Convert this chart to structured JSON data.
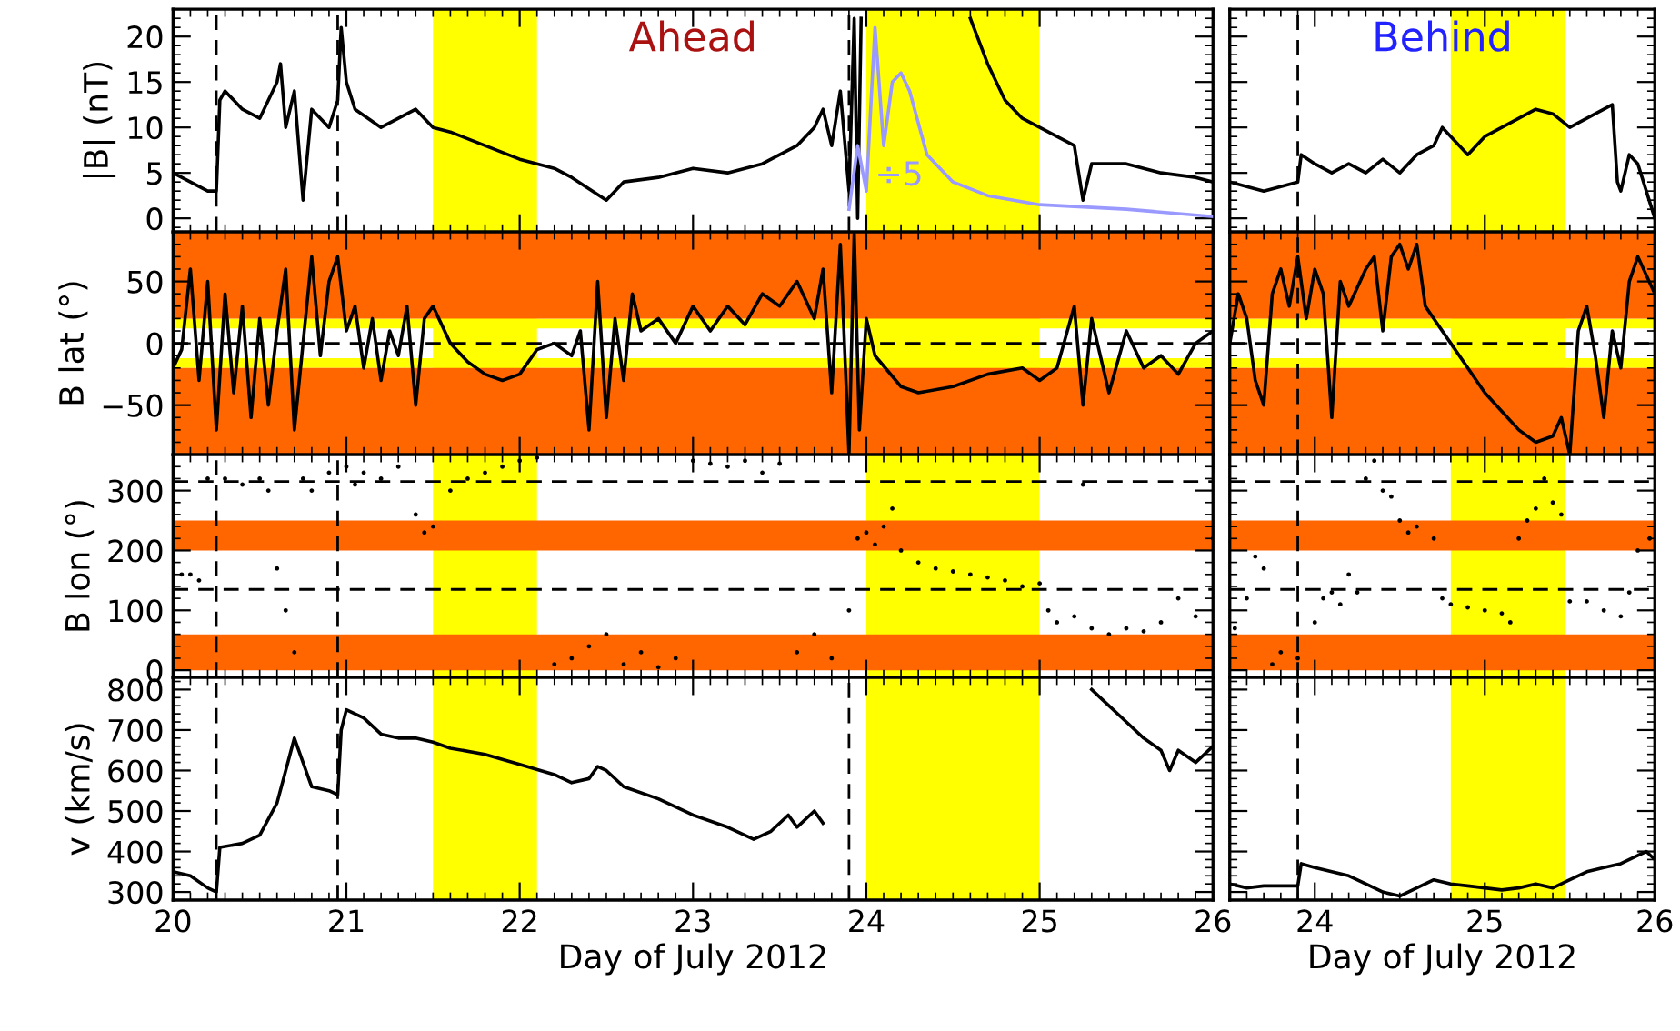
{
  "chart_data": [
    {
      "type": "line",
      "title": "Ahead",
      "ylabel": "|B| (nT)",
      "xlim": [
        20,
        26
      ],
      "xticks": [
        20,
        21,
        22,
        23,
        24,
        25,
        26
      ],
      "ylim": [
        -1.5,
        23
      ],
      "yticks": [
        0,
        5,
        10,
        15,
        20
      ],
      "tick_labels": "y",
      "bands": [
        {
          "axis": "x",
          "from": 21.5,
          "to": 22.1,
          "color": "#ffff00"
        },
        {
          "axis": "x",
          "from": 24.0,
          "to": 25.0,
          "color": "#ffff00"
        }
      ],
      "ref_lines": [
        {
          "axis": "x",
          "value": 20.25,
          "line_style": "dashed"
        },
        {
          "axis": "x",
          "value": 20.95,
          "line_style": "dashed"
        },
        {
          "axis": "x",
          "value": 23.9,
          "line_style": "dashed"
        }
      ],
      "series": [
        {
          "color": "#000000",
          "x": [
            20.0,
            20.1,
            20.2,
            20.25,
            20.27,
            20.3,
            20.4,
            20.5,
            20.6,
            20.62,
            20.65,
            20.7,
            20.75,
            20.8,
            20.85,
            20.9,
            20.95,
            20.97,
            21.0,
            21.05,
            21.2,
            21.3,
            21.4,
            21.5,
            21.6,
            21.8,
            22.0,
            22.2,
            22.3,
            22.5,
            22.6,
            22.8,
            23.0,
            23.2,
            23.4,
            23.6,
            23.7,
            23.75,
            23.8,
            23.85,
            23.9,
            23.93,
            23.95,
            23.97,
            24.0,
            24.6,
            24.7,
            24.8,
            24.9,
            25.0,
            25.1,
            25.2,
            25.25,
            25.3,
            25.5,
            25.7,
            25.9,
            26.0
          ],
          "values": [
            5,
            4,
            3,
            3,
            13,
            14,
            12,
            11,
            15,
            17,
            10,
            14,
            2,
            12,
            11,
            10,
            13,
            21,
            15,
            12,
            10,
            11,
            12,
            10,
            9.5,
            8,
            6.5,
            5.5,
            4.5,
            2,
            4,
            4.5,
            5.5,
            5,
            6,
            8,
            10,
            12,
            8,
            14,
            3,
            22,
            0,
            22,
            null,
            22,
            17,
            13,
            11,
            10,
            9,
            8,
            2,
            6,
            6,
            5,
            4.5,
            4
          ]
        },
        {
          "name": "÷5",
          "color": "#9999ff",
          "x": [
            23.9,
            23.95,
            24.0,
            24.05,
            24.1,
            24.15,
            24.2,
            24.25,
            24.35,
            24.5,
            24.7,
            25.0,
            25.5,
            26.0
          ],
          "values": [
            1,
            8,
            3,
            21,
            8,
            15,
            16,
            14,
            7,
            4,
            2.5,
            1.5,
            1,
            0.2
          ]
        }
      ]
    },
    {
      "type": "line",
      "title": "Behind",
      "xlim": [
        23.5,
        26
      ],
      "xticks": [
        24,
        25,
        26
      ],
      "ylim": [
        -1.5,
        23
      ],
      "yticks": [
        0,
        5,
        10,
        15,
        20
      ],
      "tick_labels": false,
      "bands": [
        {
          "axis": "x",
          "from": 24.8,
          "to": 25.47,
          "color": "#ffff00"
        }
      ],
      "ref_lines": [
        {
          "axis": "x",
          "value": 23.9,
          "line_style": "dashed"
        }
      ],
      "series": [
        {
          "color": "#000000",
          "x": [
            23.5,
            23.6,
            23.7,
            23.8,
            23.9,
            23.92,
            24.0,
            24.1,
            24.2,
            24.3,
            24.4,
            24.5,
            24.6,
            24.7,
            24.75,
            24.85,
            24.9,
            25.0,
            25.1,
            25.2,
            25.3,
            25.4,
            25.5,
            25.6,
            25.7,
            25.75,
            25.78,
            25.8,
            25.85,
            25.9,
            25.95,
            26.0
          ],
          "values": [
            4,
            3.5,
            3,
            3.5,
            4,
            7,
            6,
            5,
            6,
            5,
            6.5,
            5,
            7,
            8,
            10,
            8,
            7,
            9,
            10,
            11,
            12,
            11.5,
            10,
            11,
            12,
            12.5,
            4,
            3,
            7,
            6,
            3,
            0
          ]
        }
      ]
    },
    {
      "type": "line",
      "ylabel": "B lat (°)",
      "xlim": [
        20,
        26
      ],
      "xticks": [
        20,
        21,
        22,
        23,
        24,
        25,
        26
      ],
      "ylim": [
        -90,
        90
      ],
      "yticks": [
        -50,
        0,
        50
      ],
      "tick_labels": "y",
      "bands": [
        {
          "axis": "x",
          "from": 21.5,
          "to": 22.1,
          "color": "#ffff00"
        },
        {
          "axis": "x",
          "from": 24.0,
          "to": 25.0,
          "color": "#ffff00"
        },
        {
          "axis": "y",
          "from": 12,
          "to": 20,
          "color": "#ffff00"
        },
        {
          "axis": "y",
          "from": -20,
          "to": -12,
          "color": "#ffff00"
        },
        {
          "axis": "y",
          "from": 20,
          "to": 90,
          "color": "#ff6600"
        },
        {
          "axis": "y",
          "from": -90,
          "to": -20,
          "color": "#ff6600"
        }
      ],
      "ref_lines": [
        {
          "axis": "y",
          "value": 0,
          "line_style": "dashed"
        }
      ],
      "series": [
        {
          "color": "#000000",
          "x": [
            20.0,
            20.05,
            20.1,
            20.15,
            20.2,
            20.25,
            20.3,
            20.35,
            20.4,
            20.45,
            20.5,
            20.55,
            20.6,
            20.65,
            20.7,
            20.75,
            20.8,
            20.85,
            20.9,
            20.95,
            21.0,
            21.05,
            21.1,
            21.15,
            21.2,
            21.25,
            21.3,
            21.35,
            21.4,
            21.45,
            21.5,
            21.6,
            21.7,
            21.8,
            21.9,
            22.0,
            22.1,
            22.2,
            22.3,
            22.35,
            22.4,
            22.45,
            22.5,
            22.55,
            22.6,
            22.65,
            22.7,
            22.8,
            22.9,
            23.0,
            23.1,
            23.2,
            23.3,
            23.4,
            23.5,
            23.6,
            23.7,
            23.75,
            23.8,
            23.85,
            23.9,
            23.93,
            23.96,
            24.0,
            24.05,
            24.2,
            24.3,
            24.5,
            24.7,
            24.9,
            25.0,
            25.1,
            25.2,
            25.25,
            25.3,
            25.4,
            25.5,
            25.6,
            25.7,
            25.8,
            25.9,
            26.0
          ],
          "values": [
            -20,
            -5,
            60,
            -30,
            50,
            -70,
            40,
            -40,
            30,
            -60,
            20,
            -50,
            10,
            60,
            -70,
            0,
            70,
            -10,
            50,
            70,
            10,
            30,
            -20,
            20,
            -30,
            10,
            -10,
            30,
            -50,
            20,
            30,
            0,
            -15,
            -25,
            -30,
            -25,
            -5,
            0,
            -10,
            10,
            -70,
            50,
            -60,
            20,
            -30,
            40,
            10,
            20,
            0,
            30,
            10,
            30,
            15,
            40,
            30,
            50,
            20,
            60,
            -40,
            80,
            -90,
            90,
            -70,
            20,
            -10,
            -35,
            -40,
            -35,
            -25,
            -20,
            -30,
            -20,
            30,
            -50,
            20,
            -40,
            10,
            -20,
            -10,
            -25,
            0,
            10
          ]
        }
      ]
    },
    {
      "type": "line",
      "xlim": [
        23.5,
        26
      ],
      "xticks": [
        24,
        25,
        26
      ],
      "ylim": [
        -90,
        90
      ],
      "yticks": [
        -50,
        0,
        50
      ],
      "tick_labels": false,
      "bands": [
        {
          "axis": "x",
          "from": 24.8,
          "to": 25.47,
          "color": "#ffff00"
        },
        {
          "axis": "y",
          "from": 12,
          "to": 20,
          "color": "#ffff00"
        },
        {
          "axis": "y",
          "from": -20,
          "to": -12,
          "color": "#ffff00"
        },
        {
          "axis": "y",
          "from": 20,
          "to": 90,
          "color": "#ff6600"
        },
        {
          "axis": "y",
          "from": -90,
          "to": -20,
          "color": "#ff6600"
        }
      ],
      "ref_lines": [
        {
          "axis": "y",
          "value": 0,
          "line_style": "dashed"
        },
        {
          "axis": "x",
          "value": 23.9,
          "line_style": "dashed"
        }
      ],
      "series": [
        {
          "color": "#000000",
          "x": [
            23.5,
            23.55,
            23.6,
            23.65,
            23.7,
            23.75,
            23.8,
            23.85,
            23.9,
            23.95,
            24.0,
            24.05,
            24.1,
            24.15,
            24.2,
            24.3,
            24.35,
            24.4,
            24.45,
            24.5,
            24.55,
            24.6,
            24.65,
            24.7,
            24.8,
            24.9,
            25.0,
            25.1,
            25.2,
            25.3,
            25.4,
            25.45,
            25.5,
            25.55,
            25.6,
            25.65,
            25.7,
            25.75,
            25.8,
            25.85,
            25.9,
            26.0
          ],
          "values": [
            0,
            40,
            20,
            -30,
            -50,
            40,
            60,
            30,
            70,
            20,
            60,
            40,
            -60,
            50,
            30,
            60,
            70,
            10,
            70,
            80,
            60,
            80,
            30,
            20,
            0,
            -20,
            -40,
            -55,
            -70,
            -80,
            -75,
            -60,
            -90,
            10,
            30,
            -10,
            -60,
            10,
            -20,
            50,
            70,
            40
          ]
        }
      ]
    },
    {
      "type": "scatter",
      "ylabel": "B lon (°)",
      "xlim": [
        20,
        26
      ],
      "xticks": [
        20,
        21,
        22,
        23,
        24,
        25,
        26
      ],
      "ylim": [
        -12,
        360
      ],
      "yticks": [
        0,
        100,
        200,
        300
      ],
      "tick_labels": "y",
      "bands": [
        {
          "axis": "x",
          "from": 21.5,
          "to": 22.1,
          "color": "#ffff00"
        },
        {
          "axis": "x",
          "from": 24.0,
          "to": 25.0,
          "color": "#ffff00"
        },
        {
          "axis": "y",
          "from": 200,
          "to": 250,
          "color": "#ff6600"
        },
        {
          "axis": "y",
          "from": 0,
          "to": 60,
          "color": "#ff6600"
        }
      ],
      "ref_lines": [
        {
          "axis": "y",
          "value": 135,
          "line_style": "dashed"
        },
        {
          "axis": "y",
          "value": 315,
          "line_style": "dashed"
        },
        {
          "axis": "x",
          "value": 20.25,
          "line_style": "dashed"
        },
        {
          "axis": "x",
          "value": 20.95,
          "line_style": "dashed"
        }
      ],
      "series": [
        {
          "color": "#000000",
          "x": [
            20.0,
            20.05,
            20.1,
            20.15,
            20.2,
            20.3,
            20.4,
            20.5,
            20.55,
            20.6,
            20.65,
            20.7,
            20.75,
            20.8,
            20.9,
            21.0,
            21.05,
            21.1,
            21.2,
            21.3,
            21.4,
            21.45,
            21.5,
            21.6,
            21.7,
            21.8,
            21.9,
            22.0,
            22.1,
            22.2,
            22.3,
            22.4,
            22.5,
            22.6,
            22.7,
            22.8,
            22.9,
            23.0,
            23.1,
            23.2,
            23.3,
            23.4,
            23.5,
            23.6,
            23.7,
            23.8,
            23.9,
            23.95,
            24.0,
            24.05,
            24.1,
            24.15,
            24.2,
            24.3,
            24.4,
            24.5,
            24.6,
            24.7,
            24.8,
            24.9,
            25.0,
            25.05,
            25.1,
            25.2,
            25.25,
            25.3,
            25.4,
            25.5,
            25.6,
            25.7,
            25.8,
            25.9,
            26.0
          ],
          "values": [
            160,
            160,
            160,
            150,
            320,
            320,
            310,
            320,
            300,
            170,
            100,
            30,
            320,
            300,
            330,
            340,
            310,
            330,
            320,
            340,
            260,
            230,
            240,
            300,
            320,
            330,
            340,
            350,
            355,
            10,
            20,
            40,
            60,
            10,
            30,
            5,
            20,
            350,
            345,
            340,
            350,
            330,
            345,
            30,
            60,
            20,
            100,
            220,
            230,
            210,
            240,
            270,
            200,
            180,
            170,
            165,
            160,
            155,
            150,
            140,
            145,
            100,
            80,
            90,
            310,
            70,
            60,
            70,
            65,
            80,
            120,
            90,
            220
          ]
        }
      ]
    },
    {
      "type": "scatter",
      "xlim": [
        23.5,
        26
      ],
      "xticks": [
        24,
        25,
        26
      ],
      "ylim": [
        -12,
        360
      ],
      "yticks": [
        0,
        100,
        200,
        300
      ],
      "tick_labels": false,
      "bands": [
        {
          "axis": "x",
          "from": 24.8,
          "to": 25.47,
          "color": "#ffff00"
        },
        {
          "axis": "y",
          "from": 200,
          "to": 250,
          "color": "#ff6600"
        },
        {
          "axis": "y",
          "from": 0,
          "to": 60,
          "color": "#ff6600"
        }
      ],
      "ref_lines": [
        {
          "axis": "y",
          "value": 135,
          "line_style": "dashed"
        },
        {
          "axis": "y",
          "value": 315,
          "line_style": "dashed"
        },
        {
          "axis": "x",
          "value": 23.9,
          "line_style": "dashed"
        }
      ],
      "series": [
        {
          "color": "#000000",
          "x": [
            23.53,
            23.6,
            23.65,
            23.7,
            23.75,
            23.8,
            23.9,
            24.0,
            24.05,
            24.1,
            24.15,
            24.2,
            24.25,
            24.3,
            24.35,
            24.4,
            24.45,
            24.5,
            24.55,
            24.6,
            24.7,
            24.75,
            24.8,
            24.9,
            25.0,
            25.1,
            25.15,
            25.2,
            25.25,
            25.3,
            25.35,
            25.4,
            25.45,
            25.5,
            25.6,
            25.7,
            25.8,
            25.85,
            25.9,
            25.97
          ],
          "values": [
            70,
            120,
            190,
            170,
            10,
            30,
            20,
            80,
            120,
            130,
            110,
            160,
            130,
            320,
            350,
            300,
            290,
            250,
            230,
            240,
            220,
            120,
            110,
            105,
            100,
            95,
            80,
            220,
            250,
            270,
            320,
            280,
            260,
            115,
            115,
            100,
            90,
            130,
            200,
            220
          ]
        }
      ]
    },
    {
      "type": "line",
      "ylabel": "v (km/s)",
      "xlabel": "Day of July 2012",
      "xlim": [
        20,
        26
      ],
      "xticks": [
        20,
        21,
        22,
        23,
        24,
        25,
        26
      ],
      "ylim": [
        280,
        830
      ],
      "yticks": [
        300,
        400,
        500,
        600,
        700,
        800
      ],
      "bands": [
        {
          "axis": "x",
          "from": 21.5,
          "to": 22.1,
          "color": "#ffff00"
        },
        {
          "axis": "x",
          "from": 24.0,
          "to": 25.0,
          "color": "#ffff00"
        }
      ],
      "ref_lines": [
        {
          "axis": "x",
          "value": 20.25,
          "line_style": "dashed"
        },
        {
          "axis": "x",
          "value": 20.95,
          "line_style": "dashed"
        },
        {
          "axis": "x",
          "value": 23.9,
          "line_style": "dashed"
        }
      ],
      "series": [
        {
          "color": "#000000",
          "x": [
            20.0,
            20.1,
            20.2,
            20.25,
            20.27,
            20.4,
            20.5,
            20.6,
            20.65,
            20.7,
            20.75,
            20.8,
            20.9,
            20.95,
            20.97,
            21.0,
            21.1,
            21.2,
            21.3,
            21.4,
            21.5,
            21.6,
            21.8,
            22.0,
            22.2,
            22.3,
            22.4,
            22.45,
            22.5,
            22.6,
            22.8,
            23.0,
            23.2,
            23.35,
            23.45,
            23.55,
            23.6,
            23.7,
            23.75,
            23.8,
            25.3,
            25.35,
            25.5,
            25.6,
            25.7,
            25.75,
            25.8,
            25.9,
            26.0
          ],
          "values": [
            350,
            340,
            310,
            300,
            410,
            420,
            440,
            520,
            600,
            680,
            620,
            560,
            550,
            540,
            700,
            750,
            730,
            690,
            680,
            680,
            670,
            655,
            640,
            615,
            590,
            570,
            580,
            610,
            600,
            560,
            530,
            490,
            460,
            430,
            450,
            490,
            460,
            500,
            470,
            null,
            800,
            780,
            720,
            680,
            650,
            600,
            650,
            620,
            660
          ]
        }
      ]
    },
    {
      "type": "line",
      "xlabel": "Day of July 2012",
      "xlim": [
        23.5,
        26
      ],
      "xticks": [
        24,
        25,
        26
      ],
      "ylim": [
        280,
        830
      ],
      "yticks": [
        300,
        400,
        500,
        600,
        700,
        800
      ],
      "tick_labels": "x",
      "bands": [
        {
          "axis": "x",
          "from": 24.8,
          "to": 25.47,
          "color": "#ffff00"
        }
      ],
      "ref_lines": [
        {
          "axis": "x",
          "value": 23.9,
          "line_style": "dashed"
        }
      ],
      "series": [
        {
          "color": "#000000",
          "x": [
            23.5,
            23.6,
            23.7,
            23.9,
            23.92,
            24.0,
            24.1,
            24.2,
            24.3,
            24.4,
            24.5,
            24.6,
            24.7,
            24.8,
            24.9,
            25.0,
            25.1,
            25.2,
            25.3,
            25.4,
            25.5,
            25.6,
            25.7,
            25.8,
            25.9,
            25.95,
            26.0
          ],
          "values": [
            320,
            310,
            315,
            315,
            370,
            360,
            350,
            340,
            320,
            300,
            290,
            310,
            330,
            320,
            315,
            310,
            305,
            310,
            320,
            310,
            330,
            350,
            360,
            370,
            390,
            400,
            380
          ]
        }
      ]
    }
  ]
}
